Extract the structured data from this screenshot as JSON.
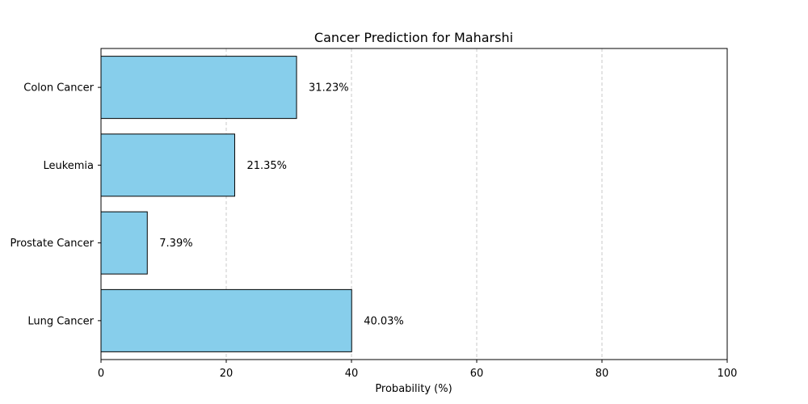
{
  "chart_data": {
    "type": "bar",
    "orientation": "horizontal",
    "title": "Cancer Prediction for Maharshi",
    "xlabel": "Probability (%)",
    "ylabel": "",
    "categories": [
      "Lung Cancer",
      "Prostate Cancer",
      "Leukemia",
      "Colon Cancer"
    ],
    "values": [
      40.03,
      7.39,
      21.35,
      31.23
    ],
    "value_labels": [
      "40.03%",
      "7.39%",
      "21.35%",
      "31.23%"
    ],
    "xlim": [
      0,
      100
    ],
    "xticks": [
      0,
      20,
      40,
      60,
      80,
      100
    ],
    "xtick_labels": [
      "0",
      "20",
      "40",
      "60",
      "80",
      "100"
    ],
    "grid": "x-dashed",
    "bar_color": "#87ceeb",
    "bar_edge_color": "#000000"
  }
}
